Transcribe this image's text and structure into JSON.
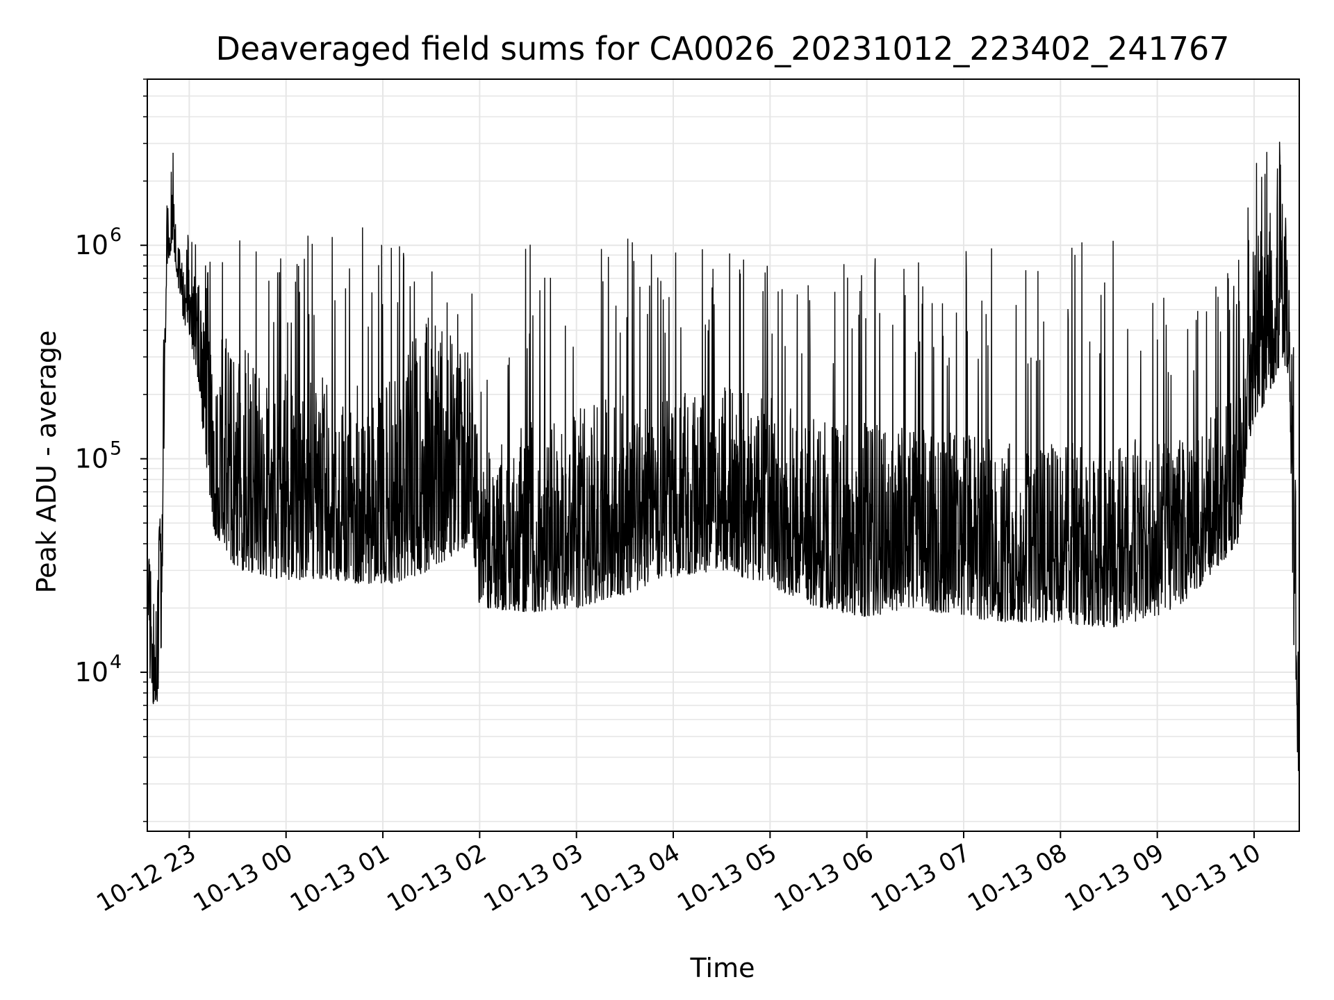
{
  "chart_data": {
    "type": "line",
    "title": "Deaveraged field sums for CA0026_20231012_223402_241767",
    "xlabel": "Time",
    "ylabel": "Peak ADU - average",
    "y_scale": "log",
    "ylim": [
      1800,
      6000000
    ],
    "xlim": [
      "2023-10-12 22:34",
      "2023-10-13 10:28"
    ],
    "grid": true,
    "line_color": "#000000",
    "x_ticks": [
      {
        "time": "2023-10-12 23:00",
        "label": "10-12 23"
      },
      {
        "time": "2023-10-13 00:00",
        "label": "10-13 00"
      },
      {
        "time": "2023-10-13 01:00",
        "label": "10-13 01"
      },
      {
        "time": "2023-10-13 02:00",
        "label": "10-13 02"
      },
      {
        "time": "2023-10-13 03:00",
        "label": "10-13 03"
      },
      {
        "time": "2023-10-13 04:00",
        "label": "10-13 04"
      },
      {
        "time": "2023-10-13 05:00",
        "label": "10-13 05"
      },
      {
        "time": "2023-10-13 06:00",
        "label": "10-13 06"
      },
      {
        "time": "2023-10-13 07:00",
        "label": "10-13 07"
      },
      {
        "time": "2023-10-13 08:00",
        "label": "10-13 08"
      },
      {
        "time": "2023-10-13 09:00",
        "label": "10-13 09"
      },
      {
        "time": "2023-10-13 10:00",
        "label": "10-13 10"
      }
    ],
    "y_ticks": [
      {
        "value": 10000,
        "base": "10",
        "exponent": "4"
      },
      {
        "value": 100000,
        "base": "10",
        "exponent": "5"
      },
      {
        "value": 1000000,
        "base": "10",
        "exponent": "6"
      }
    ],
    "series": [
      {
        "envelope": [
          {
            "time": "2023-10-12 22:34",
            "low": 25000,
            "high": 40000,
            "spike": 40000
          },
          {
            "time": "2023-10-12 22:36",
            "low": 7000,
            "high": 30000,
            "spike": 30000
          },
          {
            "time": "2023-10-12 22:40",
            "low": 7000,
            "high": 18000,
            "spike": 18000
          },
          {
            "time": "2023-10-12 22:43",
            "low": 12000,
            "high": 150000,
            "spike": 150000
          },
          {
            "time": "2023-10-12 22:46",
            "low": 800000,
            "high": 1500000,
            "spike": 1500000
          },
          {
            "time": "2023-10-12 22:50",
            "low": 1000000,
            "high": 2000000,
            "spike": 2800000
          },
          {
            "time": "2023-10-12 22:55",
            "low": 500000,
            "high": 900000,
            "spike": 1200000
          },
          {
            "time": "2023-10-12 23:05",
            "low": 250000,
            "high": 700000,
            "spike": 1200000
          },
          {
            "time": "2023-10-12 23:10",
            "low": 100000,
            "high": 500000,
            "spike": 1000000
          },
          {
            "time": "2023-10-12 23:15",
            "low": 45000,
            "high": 400000,
            "spike": 1000000
          },
          {
            "time": "2023-10-12 23:30",
            "low": 30000,
            "high": 350000,
            "spike": 1200000
          },
          {
            "time": "2023-10-13 00:00",
            "low": 27000,
            "high": 250000,
            "spike": 950000
          },
          {
            "time": "2023-10-13 00:30",
            "low": 27000,
            "high": 250000,
            "spike": 1350000
          },
          {
            "time": "2023-10-13 01:00",
            "low": 25000,
            "high": 220000,
            "spike": 1150000
          },
          {
            "time": "2023-10-13 01:30",
            "low": 30000,
            "high": 500000,
            "spike": 800000
          },
          {
            "time": "2023-10-13 01:55",
            "low": 40000,
            "high": 300000,
            "spike": 650000
          },
          {
            "time": "2023-10-13 02:00",
            "low": 20000,
            "high": 100000,
            "spike": 200000
          },
          {
            "time": "2023-10-13 02:30",
            "low": 19000,
            "high": 150000,
            "spike": 1150000
          },
          {
            "time": "2023-10-13 03:00",
            "low": 20000,
            "high": 180000,
            "spike": 900000
          },
          {
            "time": "2023-10-13 03:30",
            "low": 23000,
            "high": 200000,
            "spike": 1150000
          },
          {
            "time": "2023-10-13 04:00",
            "low": 28000,
            "high": 200000,
            "spike": 1300000
          },
          {
            "time": "2023-10-13 04:30",
            "low": 30000,
            "high": 220000,
            "spike": 1150000
          },
          {
            "time": "2023-10-13 05:00",
            "low": 25000,
            "high": 200000,
            "spike": 850000
          },
          {
            "time": "2023-10-13 05:30",
            "low": 20000,
            "high": 150000,
            "spike": 750000
          },
          {
            "time": "2023-10-13 06:00",
            "low": 18000,
            "high": 150000,
            "spike": 950000
          },
          {
            "time": "2023-10-13 06:30",
            "low": 20000,
            "high": 140000,
            "spike": 950000
          },
          {
            "time": "2023-10-13 07:00",
            "low": 18000,
            "high": 130000,
            "spike": 1000000
          },
          {
            "time": "2023-10-13 07:30",
            "low": 17000,
            "high": 120000,
            "spike": 1150000
          },
          {
            "time": "2023-10-13 08:00",
            "low": 17000,
            "high": 120000,
            "spike": 1000000
          },
          {
            "time": "2023-10-13 08:30",
            "low": 16000,
            "high": 120000,
            "spike": 1150000
          },
          {
            "time": "2023-10-13 09:00",
            "low": 18000,
            "high": 130000,
            "spike": 900000
          },
          {
            "time": "2023-10-13 09:20",
            "low": 22000,
            "high": 120000,
            "spike": 700000
          },
          {
            "time": "2023-10-13 09:50",
            "low": 40000,
            "high": 300000,
            "spike": 900000
          },
          {
            "time": "2023-10-13 10:00",
            "low": 150000,
            "high": 1000000,
            "spike": 2500000
          },
          {
            "time": "2023-10-13 10:10",
            "low": 200000,
            "high": 1500000,
            "spike": 3500000
          },
          {
            "time": "2023-10-13 10:18",
            "low": 300000,
            "high": 1800000,
            "spike": 4000000
          },
          {
            "time": "2023-10-13 10:22",
            "low": 200000,
            "high": 1200000,
            "spike": 1500000
          },
          {
            "time": "2023-10-13 10:25",
            "low": 8000,
            "high": 200000,
            "spike": 250000
          },
          {
            "time": "2023-10-13 10:28",
            "low": 2500,
            "high": 10000,
            "spike": 10000
          }
        ]
      }
    ]
  }
}
